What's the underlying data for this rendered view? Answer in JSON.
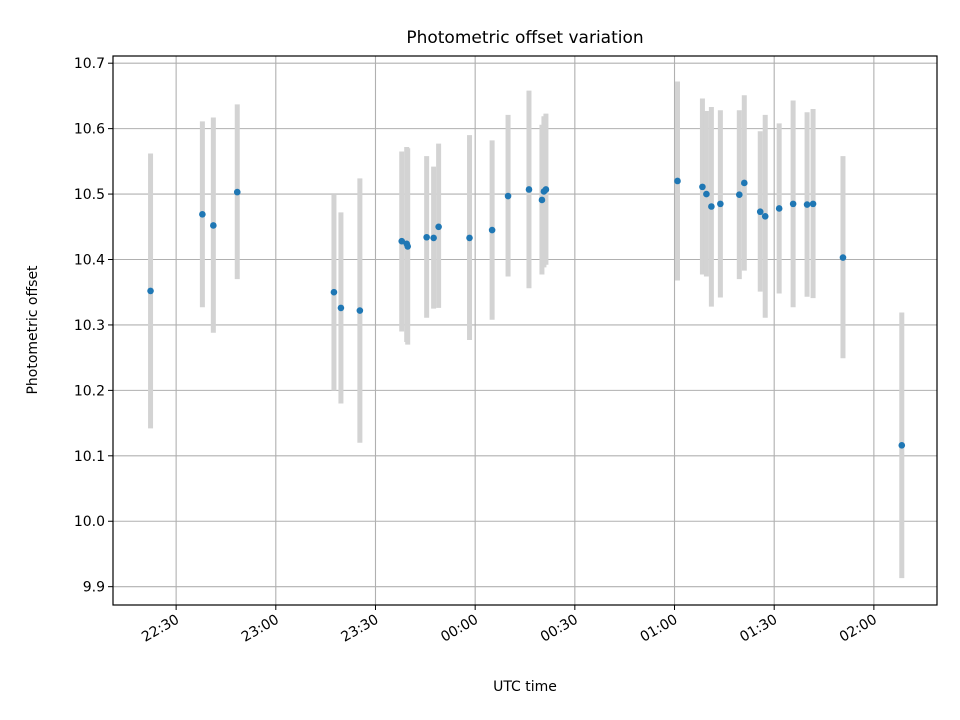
{
  "chart_data": {
    "type": "scatter",
    "title": "Photometric offset variation",
    "xlabel": "UTC time",
    "ylabel": "Photometric offset",
    "x_tick_labels": [
      "22:30",
      "23:00",
      "23:30",
      "00:00",
      "00:30",
      "01:00",
      "01:30",
      "02:00"
    ],
    "x_tick_minutes": [
      -90,
      -60,
      -30,
      0,
      30,
      60,
      90,
      120
    ],
    "xlim_minutes": [
      -109,
      139
    ],
    "ylim": [
      9.872,
      10.711
    ],
    "y_ticks": [
      9.9,
      10.0,
      10.1,
      10.2,
      10.3,
      10.4,
      10.5,
      10.6,
      10.7
    ],
    "y_tick_labels": [
      "9.9",
      "10.0",
      "10.1",
      "10.2",
      "10.3",
      "10.4",
      "10.5",
      "10.6",
      "10.7"
    ],
    "grid": true,
    "point_color": "#1f77b4",
    "errorbar_color": "#d3d3d3",
    "points": [
      {
        "minute": -97.7,
        "y": 10.352,
        "low": 10.142,
        "high": 10.562
      },
      {
        "minute": -82.1,
        "y": 10.469,
        "low": 10.327,
        "high": 10.611
      },
      {
        "minute": -78.8,
        "y": 10.452,
        "low": 10.288,
        "high": 10.617
      },
      {
        "minute": -71.6,
        "y": 10.503,
        "low": 10.37,
        "high": 10.637
      },
      {
        "minute": -42.5,
        "y": 10.35,
        "low": 10.2,
        "high": 10.5
      },
      {
        "minute": -40.4,
        "y": 10.326,
        "low": 10.18,
        "high": 10.472
      },
      {
        "minute": -34.7,
        "y": 10.322,
        "low": 10.12,
        "high": 10.524
      },
      {
        "minute": -22.1,
        "y": 10.428,
        "low": 10.29,
        "high": 10.565
      },
      {
        "minute": -20.6,
        "y": 10.424,
        "low": 10.274,
        "high": 10.572
      },
      {
        "minute": -20.3,
        "y": 10.42,
        "low": 10.27,
        "high": 10.57
      },
      {
        "minute": -14.6,
        "y": 10.434,
        "low": 10.311,
        "high": 10.558
      },
      {
        "minute": -12.5,
        "y": 10.433,
        "low": 10.325,
        "high": 10.542
      },
      {
        "minute": -11.0,
        "y": 10.45,
        "low": 10.326,
        "high": 10.577
      },
      {
        "minute": -1.7,
        "y": 10.433,
        "low": 10.277,
        "high": 10.59
      },
      {
        "minute": 5.1,
        "y": 10.445,
        "low": 10.308,
        "high": 10.582
      },
      {
        "minute": 9.9,
        "y": 10.497,
        "low": 10.374,
        "high": 10.621
      },
      {
        "minute": 16.2,
        "y": 10.507,
        "low": 10.356,
        "high": 10.658
      },
      {
        "minute": 20.1,
        "y": 10.491,
        "low": 10.377,
        "high": 10.606
      },
      {
        "minute": 20.7,
        "y": 10.504,
        "low": 10.388,
        "high": 10.619
      },
      {
        "minute": 21.3,
        "y": 10.507,
        "low": 10.392,
        "high": 10.623
      },
      {
        "minute": 60.9,
        "y": 10.52,
        "low": 10.368,
        "high": 10.672
      },
      {
        "minute": 68.4,
        "y": 10.511,
        "low": 10.377,
        "high": 10.646
      },
      {
        "minute": 69.6,
        "y": 10.5,
        "low": 10.374,
        "high": 10.627
      },
      {
        "minute": 71.1,
        "y": 10.481,
        "low": 10.328,
        "high": 10.633
      },
      {
        "minute": 73.8,
        "y": 10.485,
        "low": 10.342,
        "high": 10.628
      },
      {
        "minute": 79.5,
        "y": 10.499,
        "low": 10.37,
        "high": 10.628
      },
      {
        "minute": 81.0,
        "y": 10.517,
        "low": 10.383,
        "high": 10.651
      },
      {
        "minute": 85.8,
        "y": 10.473,
        "low": 10.351,
        "high": 10.596
      },
      {
        "minute": 87.3,
        "y": 10.466,
        "low": 10.311,
        "high": 10.621
      },
      {
        "minute": 91.5,
        "y": 10.478,
        "low": 10.348,
        "high": 10.608
      },
      {
        "minute": 95.7,
        "y": 10.485,
        "low": 10.327,
        "high": 10.643
      },
      {
        "minute": 99.9,
        "y": 10.484,
        "low": 10.343,
        "high": 10.625
      },
      {
        "minute": 101.7,
        "y": 10.485,
        "low": 10.341,
        "high": 10.63
      },
      {
        "minute": 110.7,
        "y": 10.403,
        "low": 10.249,
        "high": 10.558
      },
      {
        "minute": 128.4,
        "y": 10.116,
        "low": 9.913,
        "high": 10.319
      }
    ]
  }
}
